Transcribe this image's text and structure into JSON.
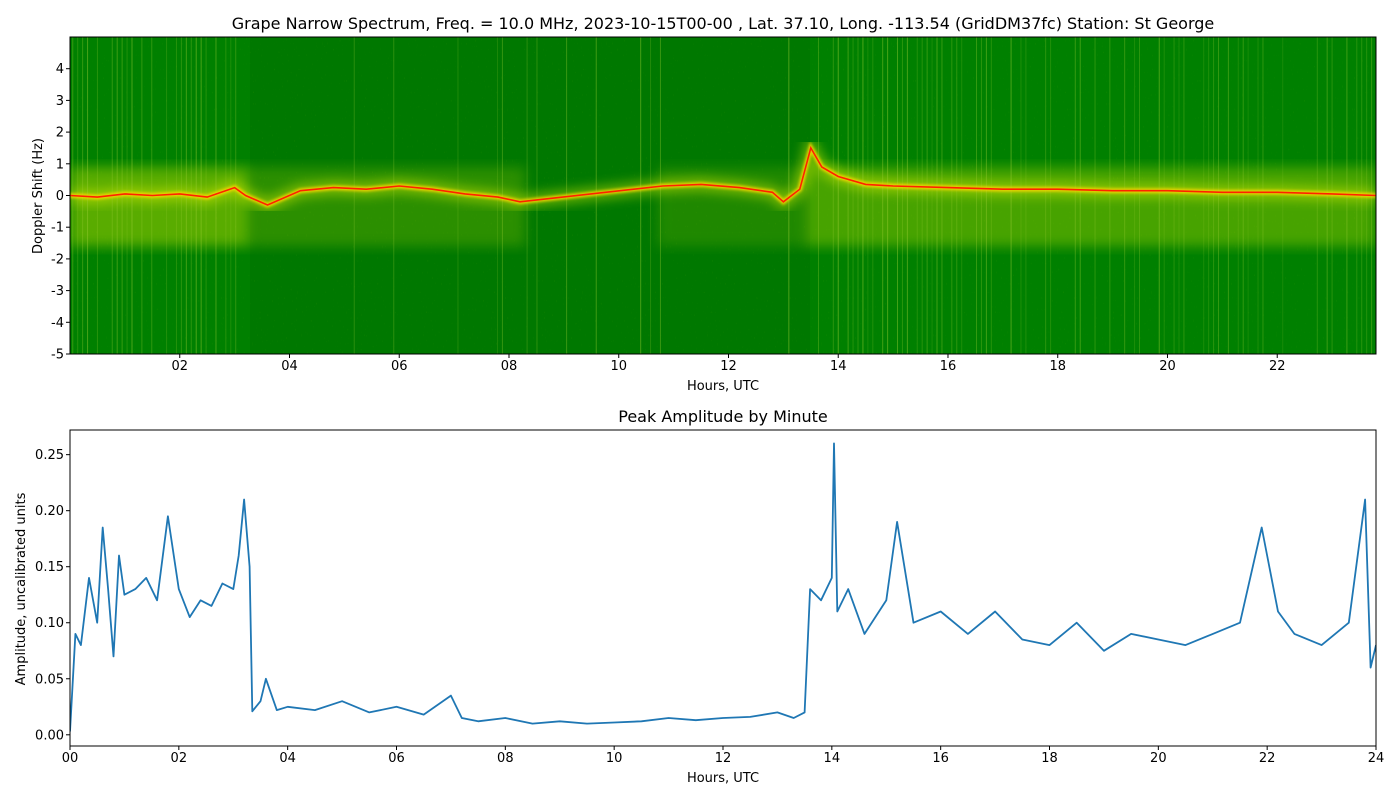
{
  "chart_data": [
    {
      "type": "heatmap",
      "title": "Grape Narrow Spectrum, Freq. = 10.0 MHz, 2023-10-15T00-00 , Lat.  37.10, Long. -113.54 (GridDM37fc) Station: St George",
      "xlabel": "Hours, UTC",
      "ylabel": "Doppler Shift (Hz)",
      "xlim": [
        0,
        23.8
      ],
      "ylim": [
        -5,
        5
      ],
      "xticks": [
        2,
        4,
        6,
        8,
        10,
        12,
        14,
        16,
        18,
        20,
        22
      ],
      "xtick_labels": [
        "02",
        "04",
        "06",
        "08",
        "10",
        "12",
        "14",
        "16",
        "18",
        "20",
        "22"
      ],
      "yticks": [
        -5,
        -4,
        -3,
        -2,
        -1,
        0,
        1,
        2,
        3,
        4
      ],
      "ytick_labels": [
        "-5",
        "-4",
        "-3",
        "-2",
        "-1",
        "0",
        "1",
        "2",
        "3",
        "4"
      ],
      "colors": {
        "background": "#008000",
        "weak": "#ffff00",
        "peak": "#ff2200"
      },
      "peak_doppler_trace": {
        "x": [
          0,
          0.5,
          1.0,
          1.5,
          2.0,
          2.5,
          3.0,
          3.2,
          3.6,
          4.2,
          4.8,
          5.4,
          6.0,
          6.6,
          7.2,
          7.8,
          8.2,
          10.8,
          11.5,
          12.2,
          12.8,
          13.0,
          13.3,
          13.5,
          13.7,
          14.0,
          14.5,
          15.0,
          16.0,
          17.0,
          18.0,
          19.0,
          20.0,
          21.0,
          22.0,
          23.0,
          23.8
        ],
        "y": [
          0.0,
          -0.05,
          0.05,
          0.0,
          0.05,
          -0.05,
          0.25,
          0.0,
          -0.3,
          0.15,
          0.25,
          0.2,
          0.3,
          0.2,
          0.05,
          -0.05,
          -0.2,
          0.3,
          0.35,
          0.25,
          0.1,
          -0.2,
          0.2,
          1.5,
          0.9,
          0.6,
          0.35,
          0.3,
          0.25,
          0.2,
          0.2,
          0.15,
          0.15,
          0.1,
          0.1,
          0.05,
          0.0
        ]
      }
    },
    {
      "type": "line",
      "title": "Peak Amplitude by Minute",
      "xlabel": "Hours, UTC",
      "ylabel": "Amplitude, uncalibrated units",
      "xlim": [
        0,
        24
      ],
      "ylim": [
        -0.01,
        0.272
      ],
      "xticks": [
        0,
        2,
        4,
        6,
        8,
        10,
        12,
        14,
        16,
        18,
        20,
        22,
        24
      ],
      "xtick_labels": [
        "00",
        "02",
        "04",
        "06",
        "08",
        "10",
        "12",
        "14",
        "16",
        "18",
        "20",
        "22",
        "24"
      ],
      "yticks": [
        0.0,
        0.05,
        0.1,
        0.15,
        0.2,
        0.25
      ],
      "ytick_labels": [
        "0.00",
        "0.05",
        "0.10",
        "0.15",
        "0.20",
        "0.25"
      ],
      "line_color": "#1f77b4",
      "x": [
        0,
        0.1,
        0.2,
        0.35,
        0.5,
        0.6,
        0.7,
        0.8,
        0.9,
        1.0,
        1.2,
        1.4,
        1.6,
        1.8,
        2.0,
        2.2,
        2.4,
        2.6,
        2.8,
        3.0,
        3.1,
        3.2,
        3.3,
        3.35,
        3.5,
        3.6,
        3.8,
        4.0,
        4.5,
        5.0,
        5.5,
        6.0,
        6.5,
        7.0,
        7.2,
        7.5,
        8.0,
        8.5,
        9.0,
        9.5,
        10.0,
        10.5,
        11.0,
        11.5,
        12.0,
        12.5,
        13.0,
        13.3,
        13.5,
        13.6,
        13.8,
        14.0,
        14.04,
        14.1,
        14.3,
        14.6,
        15.0,
        15.2,
        15.5,
        16.0,
        16.5,
        17.0,
        17.5,
        18.0,
        18.5,
        19.0,
        19.5,
        20.0,
        20.5,
        21.0,
        21.5,
        21.9,
        22.2,
        22.5,
        23.0,
        23.5,
        23.8,
        23.9,
        24.0
      ],
      "y": [
        0.003,
        0.09,
        0.08,
        0.14,
        0.1,
        0.185,
        0.13,
        0.07,
        0.16,
        0.125,
        0.13,
        0.14,
        0.12,
        0.195,
        0.13,
        0.105,
        0.12,
        0.115,
        0.135,
        0.13,
        0.16,
        0.21,
        0.15,
        0.021,
        0.03,
        0.05,
        0.022,
        0.025,
        0.022,
        0.03,
        0.02,
        0.025,
        0.018,
        0.035,
        0.015,
        0.012,
        0.015,
        0.01,
        0.012,
        0.01,
        0.011,
        0.012,
        0.015,
        0.013,
        0.015,
        0.016,
        0.02,
        0.015,
        0.02,
        0.13,
        0.12,
        0.14,
        0.26,
        0.11,
        0.13,
        0.09,
        0.12,
        0.19,
        0.1,
        0.11,
        0.09,
        0.11,
        0.085,
        0.08,
        0.1,
        0.075,
        0.09,
        0.085,
        0.08,
        0.09,
        0.1,
        0.185,
        0.11,
        0.09,
        0.08,
        0.1,
        0.21,
        0.06,
        0.08
      ]
    }
  ]
}
